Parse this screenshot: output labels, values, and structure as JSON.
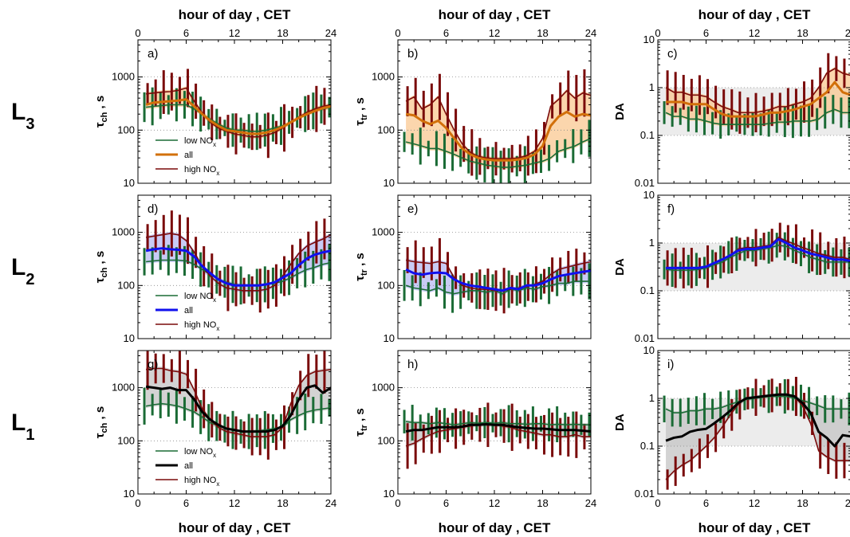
{
  "figure": {
    "x_axis_title": "hour of day , CET",
    "x_ticks": [
      0,
      6,
      12,
      18,
      24
    ],
    "row_labels": [
      {
        "main": "L",
        "sub": "3"
      },
      {
        "main": "L",
        "sub": "2"
      },
      {
        "main": "L",
        "sub": "1"
      }
    ],
    "col_ylabels": [
      {
        "sym": "τ",
        "sub": "ch",
        "unit": " , s"
      },
      {
        "sym": "τ",
        "sub": "tr",
        "unit": " , s"
      },
      {
        "sym": "DA",
        "sub": "",
        "unit": ""
      }
    ],
    "legend": [
      {
        "key": "low",
        "text": "low NO",
        "sub": "x"
      },
      {
        "key": "all",
        "text": "all",
        "sub": ""
      },
      {
        "key": "high",
        "text": "high NO",
        "sub": "x"
      }
    ],
    "colors": {
      "low": "#1a6b35",
      "high": "#7a0a0a",
      "all_L3": "#d2700a",
      "all_L2": "#1010ee",
      "all_L1": "#000000",
      "band_L3": "#f9c892",
      "band_L2": "#b7b9f2",
      "band_L1": "#c4c4c4",
      "da_region": "#ececec"
    }
  },
  "chart_data": [
    {
      "panel": "a)",
      "row": "L3",
      "metric": "tau_ch",
      "type": "line",
      "y_scale": "log",
      "ylim": [
        10,
        5000
      ],
      "xlim": [
        0,
        24
      ],
      "yticks": [
        10,
        100,
        1000
      ],
      "x": [
        1,
        2,
        3,
        4,
        5,
        6,
        7,
        8,
        9,
        10,
        11,
        12,
        13,
        14,
        15,
        16,
        17,
        18,
        19,
        20,
        21,
        22,
        23,
        24
      ],
      "series": [
        {
          "name": "low NOx",
          "values": [
            270,
            280,
            290,
            300,
            300,
            300,
            250,
            200,
            160,
            130,
            110,
            100,
            100,
            95,
            95,
            100,
            110,
            120,
            140,
            170,
            200,
            230,
            250,
            270
          ]
        },
        {
          "name": "all",
          "values": [
            300,
            330,
            340,
            350,
            360,
            380,
            280,
            200,
            150,
            120,
            100,
            95,
            90,
            85,
            85,
            90,
            100,
            115,
            140,
            170,
            200,
            230,
            260,
            280
          ]
        },
        {
          "name": "high NOx",
          "values": [
            480,
            500,
            520,
            530,
            560,
            620,
            350,
            210,
            140,
            110,
            95,
            85,
            80,
            75,
            75,
            80,
            90,
            110,
            140,
            175,
            215,
            250,
            280,
            300
          ]
        }
      ]
    },
    {
      "panel": "b)",
      "row": "L3",
      "metric": "tau_tr",
      "type": "line",
      "y_scale": "log",
      "ylim": [
        10,
        5000
      ],
      "xlim": [
        0,
        24
      ],
      "yticks": [
        10,
        100,
        1000
      ],
      "x": [
        1,
        2,
        3,
        4,
        5,
        6,
        7,
        8,
        9,
        10,
        11,
        12,
        13,
        14,
        15,
        16,
        17,
        18,
        19,
        20,
        21,
        22,
        23,
        24
      ],
      "series": [
        {
          "name": "low NOx",
          "values": [
            60,
            55,
            50,
            45,
            45,
            40,
            35,
            30,
            26,
            24,
            22,
            21,
            20,
            20,
            21,
            22,
            24,
            26,
            30,
            40,
            45,
            50,
            60,
            70
          ]
        },
        {
          "name": "all",
          "values": [
            200,
            190,
            150,
            130,
            150,
            110,
            70,
            45,
            35,
            30,
            28,
            27,
            27,
            27,
            28,
            30,
            35,
            50,
            120,
            180,
            220,
            180,
            200,
            190
          ]
        },
        {
          "name": "high NOx",
          "values": [
            350,
            420,
            250,
            300,
            420,
            200,
            100,
            55,
            38,
            32,
            30,
            29,
            29,
            29,
            30,
            33,
            40,
            70,
            280,
            380,
            550,
            400,
            500,
            450
          ]
        }
      ]
    },
    {
      "panel": "c)",
      "row": "L3",
      "metric": "DA",
      "type": "line",
      "y_scale": "log",
      "ylim": [
        0.01,
        10
      ],
      "xlim": [
        0,
        24
      ],
      "yticks": [
        0.01,
        0.1,
        1,
        10
      ],
      "x": [
        1,
        2,
        3,
        4,
        5,
        6,
        7,
        8,
        9,
        10,
        11,
        12,
        13,
        14,
        15,
        16,
        17,
        18,
        19,
        20,
        21,
        22,
        23,
        24
      ],
      "series": [
        {
          "name": "low NOx",
          "values": [
            0.3,
            0.25,
            0.25,
            0.22,
            0.22,
            0.2,
            0.18,
            0.17,
            0.17,
            0.17,
            0.17,
            0.17,
            0.17,
            0.18,
            0.19,
            0.19,
            0.2,
            0.2,
            0.2,
            0.22,
            0.3,
            0.35,
            0.3,
            0.3
          ]
        },
        {
          "name": "all",
          "values": [
            0.5,
            0.5,
            0.5,
            0.45,
            0.45,
            0.45,
            0.35,
            0.28,
            0.25,
            0.25,
            0.25,
            0.25,
            0.27,
            0.3,
            0.3,
            0.32,
            0.35,
            0.4,
            0.45,
            0.6,
            0.8,
            1.3,
            0.8,
            0.7
          ]
        },
        {
          "name": "high NOx",
          "values": [
            1.0,
            0.8,
            0.8,
            0.7,
            0.7,
            0.65,
            0.5,
            0.4,
            0.35,
            0.3,
            0.3,
            0.3,
            0.32,
            0.35,
            0.4,
            0.4,
            0.45,
            0.5,
            0.6,
            1.0,
            2.0,
            2.5,
            2.0,
            1.8
          ]
        }
      ]
    },
    {
      "panel": "d)",
      "row": "L2",
      "metric": "tau_ch",
      "type": "line",
      "y_scale": "log",
      "ylim": [
        10,
        5000
      ],
      "xlim": [
        0,
        24
      ],
      "yticks": [
        10,
        100,
        1000
      ],
      "x": [
        1,
        2,
        3,
        4,
        5,
        6,
        7,
        8,
        9,
        10,
        11,
        12,
        13,
        14,
        15,
        16,
        17,
        18,
        19,
        20,
        21,
        22,
        23,
        24
      ],
      "series": [
        {
          "name": "low NOx",
          "values": [
            280,
            290,
            300,
            300,
            300,
            290,
            250,
            200,
            160,
            130,
            115,
            105,
            100,
            100,
            100,
            105,
            110,
            120,
            140,
            170,
            200,
            220,
            250,
            270
          ]
        },
        {
          "name": "all",
          "values": [
            450,
            480,
            500,
            480,
            470,
            450,
            350,
            230,
            170,
            130,
            110,
            100,
            100,
            100,
            100,
            105,
            115,
            140,
            170,
            240,
            320,
            380,
            420,
            450
          ]
        },
        {
          "name": "high NOx",
          "values": [
            800,
            850,
            900,
            950,
            900,
            700,
            420,
            230,
            150,
            110,
            90,
            85,
            80,
            80,
            80,
            85,
            100,
            150,
            250,
            400,
            550,
            650,
            750,
            900
          ]
        }
      ]
    },
    {
      "panel": "e)",
      "row": "L2",
      "metric": "tau_tr",
      "type": "line",
      "y_scale": "log",
      "ylim": [
        10,
        5000
      ],
      "xlim": [
        0,
        24
      ],
      "yticks": [
        10,
        100,
        1000
      ],
      "x": [
        1,
        2,
        3,
        4,
        5,
        6,
        7,
        8,
        9,
        10,
        11,
        12,
        13,
        14,
        15,
        16,
        17,
        18,
        19,
        20,
        21,
        22,
        23,
        24
      ],
      "series": [
        {
          "name": "low NOx",
          "values": [
            100,
            90,
            85,
            80,
            90,
            75,
            70,
            75,
            80,
            80,
            75,
            80,
            70,
            85,
            80,
            90,
            85,
            95,
            100,
            110,
            110,
            120,
            120,
            120
          ]
        },
        {
          "name": "all",
          "values": [
            200,
            170,
            160,
            170,
            175,
            170,
            130,
            110,
            100,
            95,
            90,
            85,
            80,
            90,
            85,
            100,
            100,
            110,
            130,
            150,
            160,
            170,
            180,
            190
          ]
        },
        {
          "name": "high NOx",
          "values": [
            300,
            280,
            270,
            260,
            280,
            260,
            140,
            100,
            90,
            85,
            85,
            80,
            80,
            85,
            90,
            95,
            105,
            120,
            160,
            200,
            220,
            240,
            260,
            280
          ]
        }
      ]
    },
    {
      "panel": "f)",
      "row": "L2",
      "metric": "DA",
      "type": "line",
      "y_scale": "log",
      "ylim": [
        0.01,
        10
      ],
      "xlim": [
        0,
        24
      ],
      "yticks": [
        0.01,
        0.1,
        1,
        10
      ],
      "x": [
        1,
        2,
        3,
        4,
        5,
        6,
        7,
        8,
        9,
        10,
        11,
        12,
        13,
        14,
        15,
        16,
        17,
        18,
        19,
        20,
        21,
        22,
        23,
        24
      ],
      "series": [
        {
          "name": "low NOx",
          "values": [
            0.28,
            0.27,
            0.27,
            0.27,
            0.28,
            0.3,
            0.35,
            0.4,
            0.5,
            0.6,
            0.7,
            0.7,
            0.75,
            0.8,
            0.9,
            0.85,
            0.7,
            0.6,
            0.5,
            0.45,
            0.4,
            0.4,
            0.4,
            0.4
          ]
        },
        {
          "name": "all",
          "values": [
            0.3,
            0.3,
            0.3,
            0.3,
            0.3,
            0.32,
            0.38,
            0.45,
            0.55,
            0.7,
            0.75,
            0.75,
            0.8,
            0.85,
            1.2,
            1.0,
            0.8,
            0.7,
            0.6,
            0.55,
            0.5,
            0.45,
            0.45,
            0.42
          ]
        },
        {
          "name": "high NOx",
          "values": [
            0.3,
            0.3,
            0.3,
            0.3,
            0.3,
            0.32,
            0.38,
            0.45,
            0.55,
            0.75,
            0.8,
            0.8,
            0.85,
            0.9,
            1.3,
            1.1,
            0.95,
            0.8,
            0.7,
            0.6,
            0.55,
            0.5,
            0.5,
            0.45
          ]
        }
      ]
    },
    {
      "panel": "g)",
      "row": "L1",
      "metric": "tau_ch",
      "type": "line",
      "y_scale": "log",
      "ylim": [
        10,
        5000
      ],
      "xlim": [
        0,
        24
      ],
      "yticks": [
        10,
        100,
        1000
      ],
      "x": [
        1,
        2,
        3,
        4,
        5,
        6,
        7,
        8,
        9,
        10,
        11,
        12,
        13,
        14,
        15,
        16,
        17,
        18,
        19,
        20,
        21,
        22,
        23,
        24
      ],
      "series": [
        {
          "name": "low NOx",
          "values": [
            450,
            480,
            500,
            480,
            450,
            400,
            350,
            280,
            220,
            190,
            170,
            160,
            150,
            150,
            155,
            160,
            170,
            180,
            250,
            300,
            350,
            380,
            400,
            420
          ]
        },
        {
          "name": "all",
          "values": [
            1050,
            1000,
            950,
            1000,
            900,
            900,
            600,
            350,
            250,
            200,
            170,
            160,
            150,
            150,
            150,
            150,
            160,
            190,
            300,
            600,
            1000,
            1100,
            800,
            1000
          ]
        },
        {
          "name": "high NOx",
          "values": [
            2200,
            2300,
            2300,
            2100,
            2000,
            1800,
            900,
            400,
            250,
            180,
            150,
            140,
            130,
            120,
            120,
            120,
            130,
            180,
            500,
            1100,
            1700,
            2000,
            2100,
            2200
          ]
        }
      ]
    },
    {
      "panel": "h)",
      "row": "L1",
      "metric": "tau_tr",
      "type": "line",
      "y_scale": "log",
      "ylim": [
        10,
        5000
      ],
      "xlim": [
        0,
        24
      ],
      "yticks": [
        10,
        100,
        1000
      ],
      "x": [
        1,
        2,
        3,
        4,
        5,
        6,
        7,
        8,
        9,
        10,
        11,
        12,
        13,
        14,
        15,
        16,
        17,
        18,
        19,
        20,
        21,
        22,
        23,
        24
      ],
      "series": [
        {
          "name": "low NOx",
          "values": [
            230,
            220,
            220,
            210,
            220,
            210,
            200,
            210,
            220,
            215,
            220,
            215,
            220,
            210,
            210,
            205,
            210,
            210,
            200,
            205,
            200,
            205,
            200,
            200
          ]
        },
        {
          "name": "all",
          "values": [
            150,
            160,
            160,
            170,
            180,
            180,
            180,
            185,
            200,
            200,
            205,
            200,
            200,
            190,
            180,
            175,
            170,
            170,
            165,
            160,
            160,
            160,
            155,
            150
          ]
        },
        {
          "name": "high NOx",
          "values": [
            80,
            90,
            110,
            130,
            150,
            160,
            170,
            180,
            190,
            200,
            200,
            200,
            190,
            180,
            160,
            150,
            140,
            130,
            130,
            120,
            120,
            130,
            120,
            120
          ]
        }
      ]
    },
    {
      "panel": "i)",
      "row": "L1",
      "metric": "DA",
      "type": "line",
      "y_scale": "log",
      "ylim": [
        0.01,
        10
      ],
      "xlim": [
        0,
        24
      ],
      "yticks": [
        0.01,
        0.1,
        1,
        10
      ],
      "x": [
        1,
        2,
        3,
        4,
        5,
        6,
        7,
        8,
        9,
        10,
        11,
        12,
        13,
        14,
        15,
        16,
        17,
        18,
        19,
        20,
        21,
        22,
        23,
        24
      ],
      "series": [
        {
          "name": "low NOx",
          "values": [
            0.6,
            0.5,
            0.5,
            0.55,
            0.55,
            0.6,
            0.6,
            0.65,
            0.75,
            0.85,
            0.95,
            1.0,
            1.05,
            1.1,
            1.1,
            1.1,
            1.0,
            0.9,
            0.8,
            0.7,
            0.6,
            0.6,
            0.6,
            0.6
          ]
        },
        {
          "name": "all",
          "values": [
            0.13,
            0.15,
            0.16,
            0.2,
            0.22,
            0.23,
            0.3,
            0.4,
            0.55,
            0.8,
            1.0,
            1.05,
            1.1,
            1.15,
            1.2,
            1.2,
            1.1,
            0.8,
            0.5,
            0.2,
            0.15,
            0.1,
            0.17,
            0.16
          ]
        },
        {
          "name": "high NOx",
          "values": [
            0.02,
            0.03,
            0.04,
            0.05,
            0.07,
            0.1,
            0.15,
            0.25,
            0.45,
            0.75,
            1.0,
            1.05,
            1.1,
            1.15,
            1.2,
            1.2,
            1.1,
            0.7,
            0.3,
            0.08,
            0.06,
            0.05,
            0.05,
            0.05
          ]
        }
      ]
    }
  ]
}
